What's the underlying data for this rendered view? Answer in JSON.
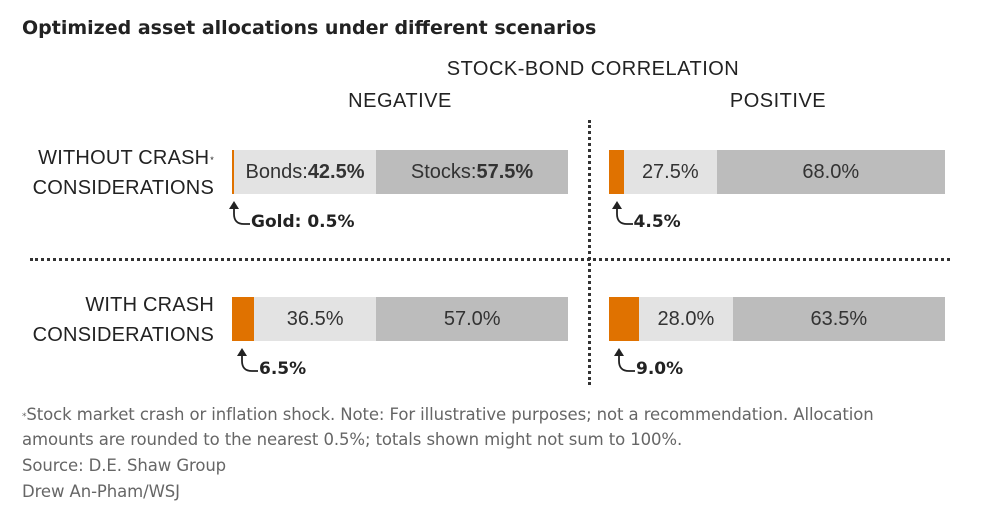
{
  "title": "Optimized asset allocations under different scenarios",
  "header": "STOCK-BOND CORRELATION",
  "columns": [
    "NEGATIVE",
    "POSITIVE"
  ],
  "rows": {
    "without": {
      "line1": "WITHOUT CRASH",
      "marker": "*",
      "line2": "CONSIDERATIONS"
    },
    "with": {
      "line1": "WITH CRASH",
      "line2": "CONSIDERATIONS"
    }
  },
  "chart_data": {
    "type": "bar",
    "stacked": true,
    "orientation": "horizontal",
    "series_names": [
      "Gold",
      "Bonds",
      "Stocks"
    ],
    "colors": {
      "Gold": "#e07200",
      "Bonds": "#e3e3e3",
      "Stocks": "#bcbcbc"
    },
    "panels": [
      {
        "row": "WITHOUT CRASH CONSIDERATIONS",
        "column": "NEGATIVE",
        "gold": 0.5,
        "bonds": 42.5,
        "stocks": 57.5,
        "labels": {
          "gold_name": "Gold:",
          "gold_value": "0.5%",
          "bonds_name": "Bonds:",
          "bonds_value": "42.5%",
          "stocks_name": "Stocks:",
          "stocks_value": "57.5%"
        }
      },
      {
        "row": "WITHOUT CRASH CONSIDERATIONS",
        "column": "POSITIVE",
        "gold": 4.5,
        "bonds": 27.5,
        "stocks": 68.0,
        "labels": {
          "gold_value": "4.5%",
          "bonds_value": "27.5%",
          "stocks_value": "68.0%"
        }
      },
      {
        "row": "WITH CRASH CONSIDERATIONS",
        "column": "NEGATIVE",
        "gold": 6.5,
        "bonds": 36.5,
        "stocks": 57.0,
        "labels": {
          "gold_value": "6.5%",
          "bonds_value": "36.5%",
          "stocks_value": "57.0%"
        }
      },
      {
        "row": "WITH CRASH CONSIDERATIONS",
        "column": "POSITIVE",
        "gold": 9.0,
        "bonds": 28.0,
        "stocks": 63.5,
        "labels": {
          "gold_value": "9.0%",
          "bonds_value": "28.0%",
          "stocks_value": "63.5%"
        }
      }
    ]
  },
  "footnote": {
    "marker": "*",
    "line1": "Stock market crash or inflation shock. Note: For illustrative purposes; not a recommendation. Allocation",
    "line2": "amounts are rounded to the nearest 0.5%; totals shown might not sum to 100%.",
    "source": "Source: D.E. Shaw Group",
    "credit": "Drew An-Pham/WSJ"
  }
}
